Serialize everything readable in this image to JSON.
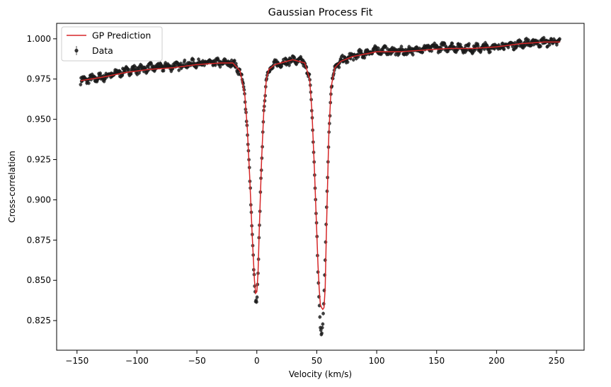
{
  "chart_data": {
    "type": "line",
    "title": "Gaussian Process Fit",
    "xlabel": "Velocity (km/s)",
    "ylabel": "Cross-correlation",
    "xlim": [
      -167,
      273
    ],
    "ylim": [
      0.8066,
      1.0096
    ],
    "xticks": [
      -150,
      -100,
      -50,
      0,
      50,
      100,
      150,
      200,
      250
    ],
    "xtick_labels": [
      "−150",
      "−100",
      "−50",
      "0",
      "50",
      "100",
      "150",
      "200",
      "250"
    ],
    "yticks": [
      0.825,
      0.85,
      0.875,
      0.9,
      0.925,
      0.95,
      0.975,
      1.0
    ],
    "ytick_labels": [
      "0.825",
      "0.850",
      "0.875",
      "0.900",
      "0.925",
      "0.950",
      "0.975",
      "1.000"
    ],
    "grid": false,
    "legend_position": "top-left",
    "series": [
      {
        "name": "GP Prediction",
        "kind": "line",
        "color": "#d62728",
        "x": [
          -147,
          -130,
          -110,
          -90,
          -70,
          -50,
          -30,
          -20,
          -14,
          -10,
          -8,
          -6,
          -4,
          -2,
          -1,
          0,
          1,
          2,
          4,
          6,
          8,
          10,
          15,
          20,
          30,
          40,
          44,
          46,
          48,
          50,
          51,
          52,
          53,
          54,
          55,
          56,
          57,
          58,
          60,
          62,
          65,
          70,
          80,
          100,
          120,
          140,
          160,
          180,
          200,
          220,
          240,
          253
        ],
        "y": [
          0.974,
          0.976,
          0.979,
          0.981,
          0.982,
          0.984,
          0.985,
          0.985,
          0.98,
          0.965,
          0.945,
          0.915,
          0.88,
          0.85,
          0.842,
          0.843,
          0.855,
          0.88,
          0.925,
          0.958,
          0.975,
          0.981,
          0.984,
          0.985,
          0.987,
          0.985,
          0.975,
          0.955,
          0.92,
          0.88,
          0.86,
          0.845,
          0.835,
          0.833,
          0.832,
          0.833,
          0.845,
          0.88,
          0.94,
          0.97,
          0.982,
          0.986,
          0.989,
          0.992,
          0.992,
          0.993,
          0.994,
          0.994,
          0.995,
          0.997,
          0.998,
          0.998
        ]
      },
      {
        "name": "Data",
        "kind": "errorbar",
        "color": "#1a1a1a",
        "x": [
          -147,
          -130,
          -110,
          -90,
          -70,
          -50,
          -30,
          -20,
          -14,
          -10,
          -8,
          -6,
          -4,
          -2,
          -1,
          0,
          1,
          2,
          4,
          6,
          8,
          10,
          15,
          20,
          30,
          40,
          44,
          46,
          48,
          50,
          51,
          52,
          53,
          54,
          55,
          56,
          57,
          58,
          60,
          62,
          65,
          70,
          80,
          100,
          120,
          140,
          160,
          180,
          200,
          220,
          240,
          253
        ],
        "y": [
          0.974,
          0.976,
          0.98,
          0.982,
          0.983,
          0.985,
          0.985,
          0.985,
          0.98,
          0.965,
          0.945,
          0.915,
          0.88,
          0.85,
          0.838,
          0.835,
          0.852,
          0.88,
          0.925,
          0.958,
          0.975,
          0.981,
          0.984,
          0.985,
          0.987,
          0.985,
          0.975,
          0.955,
          0.92,
          0.88,
          0.855,
          0.835,
          0.822,
          0.816,
          0.825,
          0.84,
          0.86,
          0.89,
          0.94,
          0.97,
          0.982,
          0.986,
          0.989,
          0.993,
          0.992,
          0.994,
          0.995,
          0.994,
          0.995,
          0.997,
          0.998,
          0.998
        ]
      }
    ]
  }
}
